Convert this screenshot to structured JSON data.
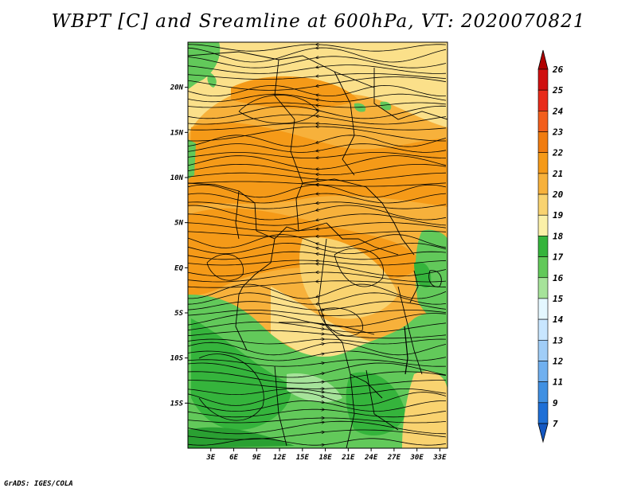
{
  "title": "WBPT [C] and Sreamline at 600hPa, VT: 2020070821",
  "footer": "GrADS: IGES/COLA",
  "map": {
    "lat_labels": [
      "20N",
      "15N",
      "10N",
      "5N",
      "EQ",
      "5S",
      "10S",
      "15S"
    ],
    "lat_values": [
      20,
      15,
      10,
      5,
      0,
      -5,
      -10,
      -15
    ],
    "lon_labels": [
      "3E",
      "6E",
      "9E",
      "12E",
      "15E",
      "18E",
      "21E",
      "24E",
      "27E",
      "30E",
      "33E"
    ],
    "lon_values": [
      3,
      6,
      9,
      12,
      15,
      18,
      21,
      24,
      27,
      30,
      33
    ],
    "lon_range": [
      0,
      34
    ],
    "lat_range": [
      -20,
      25
    ]
  },
  "colorbar": {
    "labels": [
      "26",
      "25",
      "24",
      "23",
      "22",
      "21",
      "20",
      "19",
      "18",
      "17",
      "16",
      "15",
      "14",
      "13",
      "12",
      "11",
      "9",
      "7"
    ],
    "colors": [
      "#b00000",
      "#d01010",
      "#e82b1a",
      "#f25e1c",
      "#f07c10",
      "#f59a18",
      "#f7b13b",
      "#f9d370",
      "#fbf0a8",
      "#35b43c",
      "#62c95a",
      "#a6e39a",
      "#e4f7ff",
      "#c8e6ff",
      "#a0cdf7",
      "#70b0ef",
      "#4090e2",
      "#1e6fd6",
      "#1458c2"
    ]
  }
}
